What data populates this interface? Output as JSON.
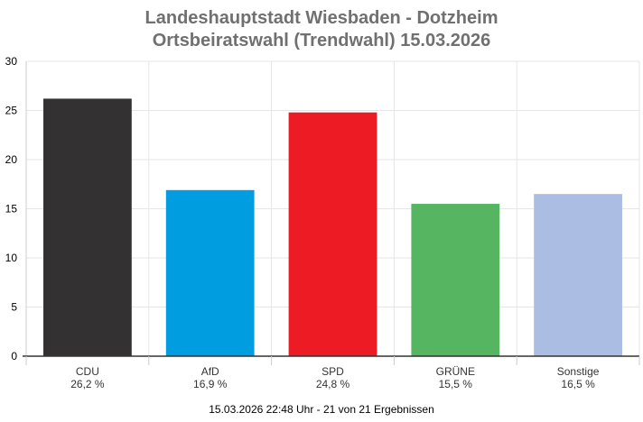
{
  "chart_data": {
    "type": "bar",
    "title": "Landeshauptstadt Wiesbaden - Dotzheim",
    "subtitle": "Ortsbeiratswahl (Trendwahl) 15.03.2026",
    "categories": [
      "CDU",
      "AfD",
      "SPD",
      "GRÜNE",
      "Sonstige"
    ],
    "values": [
      26.2,
      16.9,
      24.8,
      15.5,
      16.5
    ],
    "value_labels": [
      "26,2 %",
      "16,9 %",
      "24,8 %",
      "15,5 %",
      "16,5 %"
    ],
    "colors": [
      "#333132",
      "#009ee0",
      "#ed1b24",
      "#55b560",
      "#abbde3"
    ],
    "ylim": [
      0,
      30
    ],
    "yticks": [
      0,
      5,
      10,
      15,
      20,
      25,
      30
    ],
    "grid": true,
    "footer": "15.03.2026 22:48 Uhr - 21 von 21 Ergebnissen"
  }
}
